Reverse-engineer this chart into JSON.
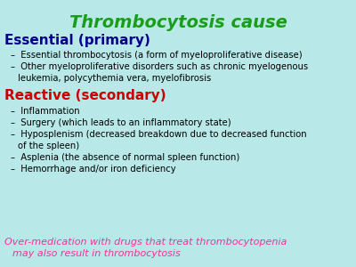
{
  "title": "Thrombocytosis cause",
  "title_color": "#1a9e1a",
  "background_color": "#b8e8e8",
  "section1_header": "Essential (primary)",
  "section1_header_color": "#00008B",
  "section1_bullets": [
    "Essential thrombocytosis (a form of myeloproliferative disease)",
    "Other myeloproliferative disorders such as chronic myelogenous\n     leukemia, polycythemia vera, myelofibrosis"
  ],
  "section2_header": "Reactive (secondary)",
  "section2_header_color": "#cc0000",
  "section2_bullets": [
    "Inflammation",
    "Surgery (which leads to an inflammatory state)",
    "Hyposplenism (decreased breakdown due to decreased function\n     of the spleen)",
    "Asplenia (the absence of normal spleen function)",
    "Hemorrhage and/or iron deficiency"
  ],
  "bullet_color": "#000000",
  "footnote_line1": "Over-medication with drugs that treat thrombocytopenia",
  "footnote_line2": "may also result in thrombocytosis",
  "footnote_color": "#ee3399"
}
